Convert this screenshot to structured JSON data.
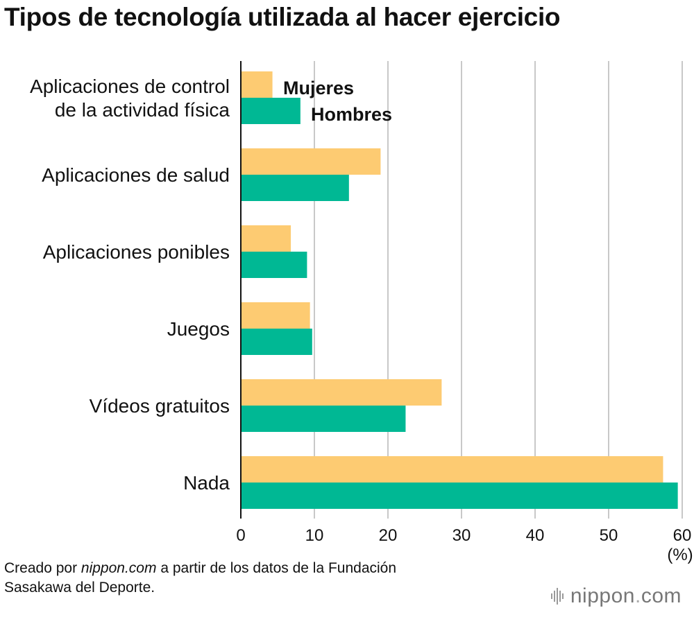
{
  "title": "Tipos de tecnología utilizada al hacer ejercicio",
  "chart_data": {
    "type": "bar",
    "orientation": "horizontal",
    "title": "Tipos de tecnología utilizada al hacer ejercicio",
    "categories": [
      [
        "Aplicaciones de control",
        "de la actividad física"
      ],
      [
        "Aplicaciones de salud"
      ],
      [
        "Aplicaciones ponibles"
      ],
      [
        "Juegos"
      ],
      [
        "Vídeos gratuitos"
      ],
      [
        "Nada"
      ]
    ],
    "series": [
      {
        "name": "Mujeres",
        "color": "#FDCB72",
        "values": [
          4.3,
          19.0,
          6.8,
          9.4,
          27.3,
          57.4
        ]
      },
      {
        "name": "Hombres",
        "color": "#00B894",
        "values": [
          8.1,
          14.7,
          9.0,
          9.7,
          22.4,
          59.4
        ]
      }
    ],
    "xlim": [
      0,
      60
    ],
    "xticks": [
      0,
      10,
      20,
      30,
      40,
      50,
      60
    ],
    "xunit": "(%)",
    "grid": true
  },
  "source": {
    "prefix": "Creado por ",
    "site": "nippon.com",
    "suffix": " a partir de los datos de la Fundación",
    "line2": "Sasakawa del Deporte."
  },
  "brand": {
    "name": "nippon",
    "dot": ".",
    "tld": "com"
  }
}
